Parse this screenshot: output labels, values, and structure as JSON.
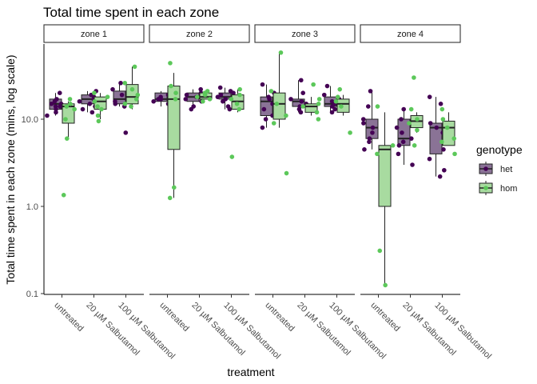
{
  "chart_data": {
    "type": "box",
    "title": "Total time spent in each zone",
    "xlabel": "treatment",
    "ylabel": "Total time spent in each zone (mins, log scale)",
    "yscale": "log10",
    "ylim": [
      0.1,
      60
    ],
    "y_ticks": [
      0.1,
      1.0,
      10.0
    ],
    "y_tick_labels": [
      "0.1",
      "1.0",
      "10.0"
    ],
    "grid": false,
    "legend_position": "right",
    "panels": [
      "zone 1",
      "zone 2",
      "zone 3",
      "zone 4"
    ],
    "categories": [
      "untreated",
      "20 µM Salbutamol",
      "100 µM Salbutamol"
    ],
    "legend": {
      "title": "genotype",
      "items": [
        {
          "label": "het",
          "color": "#440154",
          "fill": "#8a7396"
        },
        {
          "label": "hom",
          "color": "#5cc85a",
          "fill": "#a8dba0"
        }
      ]
    },
    "series": [
      {
        "name": "het",
        "boxes": [
          [
            {
              "min": 11,
              "q1": 13,
              "median": 15,
              "q3": 17,
              "max": 20,
              "points": [
                20,
                17,
                16,
                15,
                15,
                14,
                14,
                13,
                12,
                11
              ]
            },
            {
              "min": 12,
              "q1": 15,
              "median": 17,
              "q3": 19,
              "max": 21,
              "points": [
                21,
                19,
                18,
                17,
                16,
                15,
                14,
                13,
                12
              ]
            },
            {
              "min": 14,
              "q1": 15,
              "median": 17,
              "q3": 21,
              "max": 26,
              "points": [
                26,
                22,
                19,
                17,
                16,
                15,
                14,
                7
              ]
            }
          ],
          [
            {
              "min": 14,
              "q1": 16,
              "median": 17,
              "q3": 20,
              "max": 21,
              "points": [
                21,
                19,
                18,
                17,
                17,
                16,
                15
              ]
            },
            {
              "min": 13,
              "q1": 16,
              "median": 18,
              "q3": 20,
              "max": 22,
              "points": [
                22,
                20,
                19,
                18,
                17,
                16,
                14,
                13
              ]
            },
            {
              "min": 13,
              "q1": 17,
              "median": 18,
              "q3": 20,
              "max": 23,
              "points": [
                23,
                21,
                20,
                19,
                18,
                17,
                16,
                14,
                13
              ]
            }
          ],
          [
            {
              "min": 8,
              "q1": 11,
              "median": 16,
              "q3": 18,
              "max": 25,
              "points": [
                25,
                20,
                18,
                17,
                15,
                13,
                11,
                10,
                8
              ]
            },
            {
              "min": 12,
              "q1": 14,
              "median": 16,
              "q3": 17,
              "max": 28,
              "points": [
                28,
                20,
                17,
                16,
                15,
                14,
                13,
                12
              ]
            },
            {
              "min": 12,
              "q1": 14,
              "median": 15,
              "q3": 18,
              "max": 24,
              "points": [
                24,
                19,
                17,
                16,
                15,
                14,
                13,
                12
              ]
            }
          ],
          [
            {
              "min": 4.5,
              "q1": 6,
              "median": 8,
              "q3": 10,
              "max": 21,
              "points": [
                21,
                14,
                10,
                9,
                8,
                7,
                6,
                5.5,
                4.5
              ]
            },
            {
              "min": 3,
              "q1": 5,
              "median": 6,
              "q3": 10,
              "max": 13,
              "points": [
                13,
                10,
                8,
                7,
                6,
                5.5,
                5,
                4,
                3
              ]
            },
            {
              "min": 2.2,
              "q1": 4,
              "median": 8,
              "q3": 9,
              "max": 18,
              "points": [
                18,
                15,
                9,
                8,
                7,
                4.5,
                3.5,
                2.6,
                2.2
              ]
            }
          ]
        ]
      },
      {
        "name": "hom",
        "boxes": [
          [
            {
              "min": 6,
              "q1": 9,
              "median": 14,
              "q3": 15,
              "max": 16,
              "points": [
                17,
                15,
                14,
                13,
                10,
                6,
                1.35
              ]
            },
            {
              "min": 10,
              "q1": 13,
              "median": 16,
              "q3": 18,
              "max": 20,
              "points": [
                20,
                18,
                16,
                14,
                13,
                11,
                9.5
              ]
            },
            {
              "min": 13,
              "q1": 15,
              "median": 18,
              "q3": 25,
              "max": 40,
              "points": [
                40,
                26,
                22,
                19,
                17,
                15,
                14
              ]
            }
          ],
          [
            {
              "min": 1.25,
              "q1": 4.5,
              "median": 17,
              "q3": 24,
              "max": 34,
              "points": [
                44,
                24,
                20,
                17,
                1.65,
                1.25
              ]
            },
            {
              "min": 17,
              "q1": 17,
              "median": 18,
              "q3": 20,
              "max": 21,
              "points": [
                21,
                20,
                19,
                18,
                17,
                16
              ]
            },
            {
              "min": 12,
              "q1": 13,
              "median": 16,
              "q3": 19,
              "max": 22,
              "points": [
                22,
                19,
                17,
                15,
                13,
                3.7
              ]
            }
          ],
          [
            {
              "min": 8,
              "q1": 10,
              "median": 15,
              "q3": 20,
              "max": 58,
              "points": [
                58,
                21,
                15,
                11,
                9,
                2.4
              ]
            },
            {
              "min": 11,
              "q1": 12,
              "median": 14,
              "q3": 15,
              "max": 18,
              "points": [
                25,
                17,
                15,
                14,
                12,
                10
              ]
            },
            {
              "min": 11,
              "q1": 12,
              "median": 15,
              "q3": 17,
              "max": 19,
              "points": [
                22,
                18,
                16,
                14,
                7
              ]
            }
          ],
          [
            {
              "min": 0.125,
              "q1": 1.0,
              "median": 4.5,
              "q3": 5,
              "max": 12,
              "points": [
                14,
                5,
                4,
                0.31,
                0.125
              ]
            },
            {
              "min": 7,
              "q1": 8,
              "median": 9.5,
              "q3": 11,
              "max": 12,
              "points": [
                30,
                13,
                10,
                9,
                7.5,
                5
              ]
            },
            {
              "min": 5,
              "q1": 5,
              "median": 8,
              "q3": 9.5,
              "max": 12,
              "points": [
                13,
                10,
                8,
                6,
                5.5,
                4
              ]
            }
          ]
        ]
      }
    ]
  }
}
